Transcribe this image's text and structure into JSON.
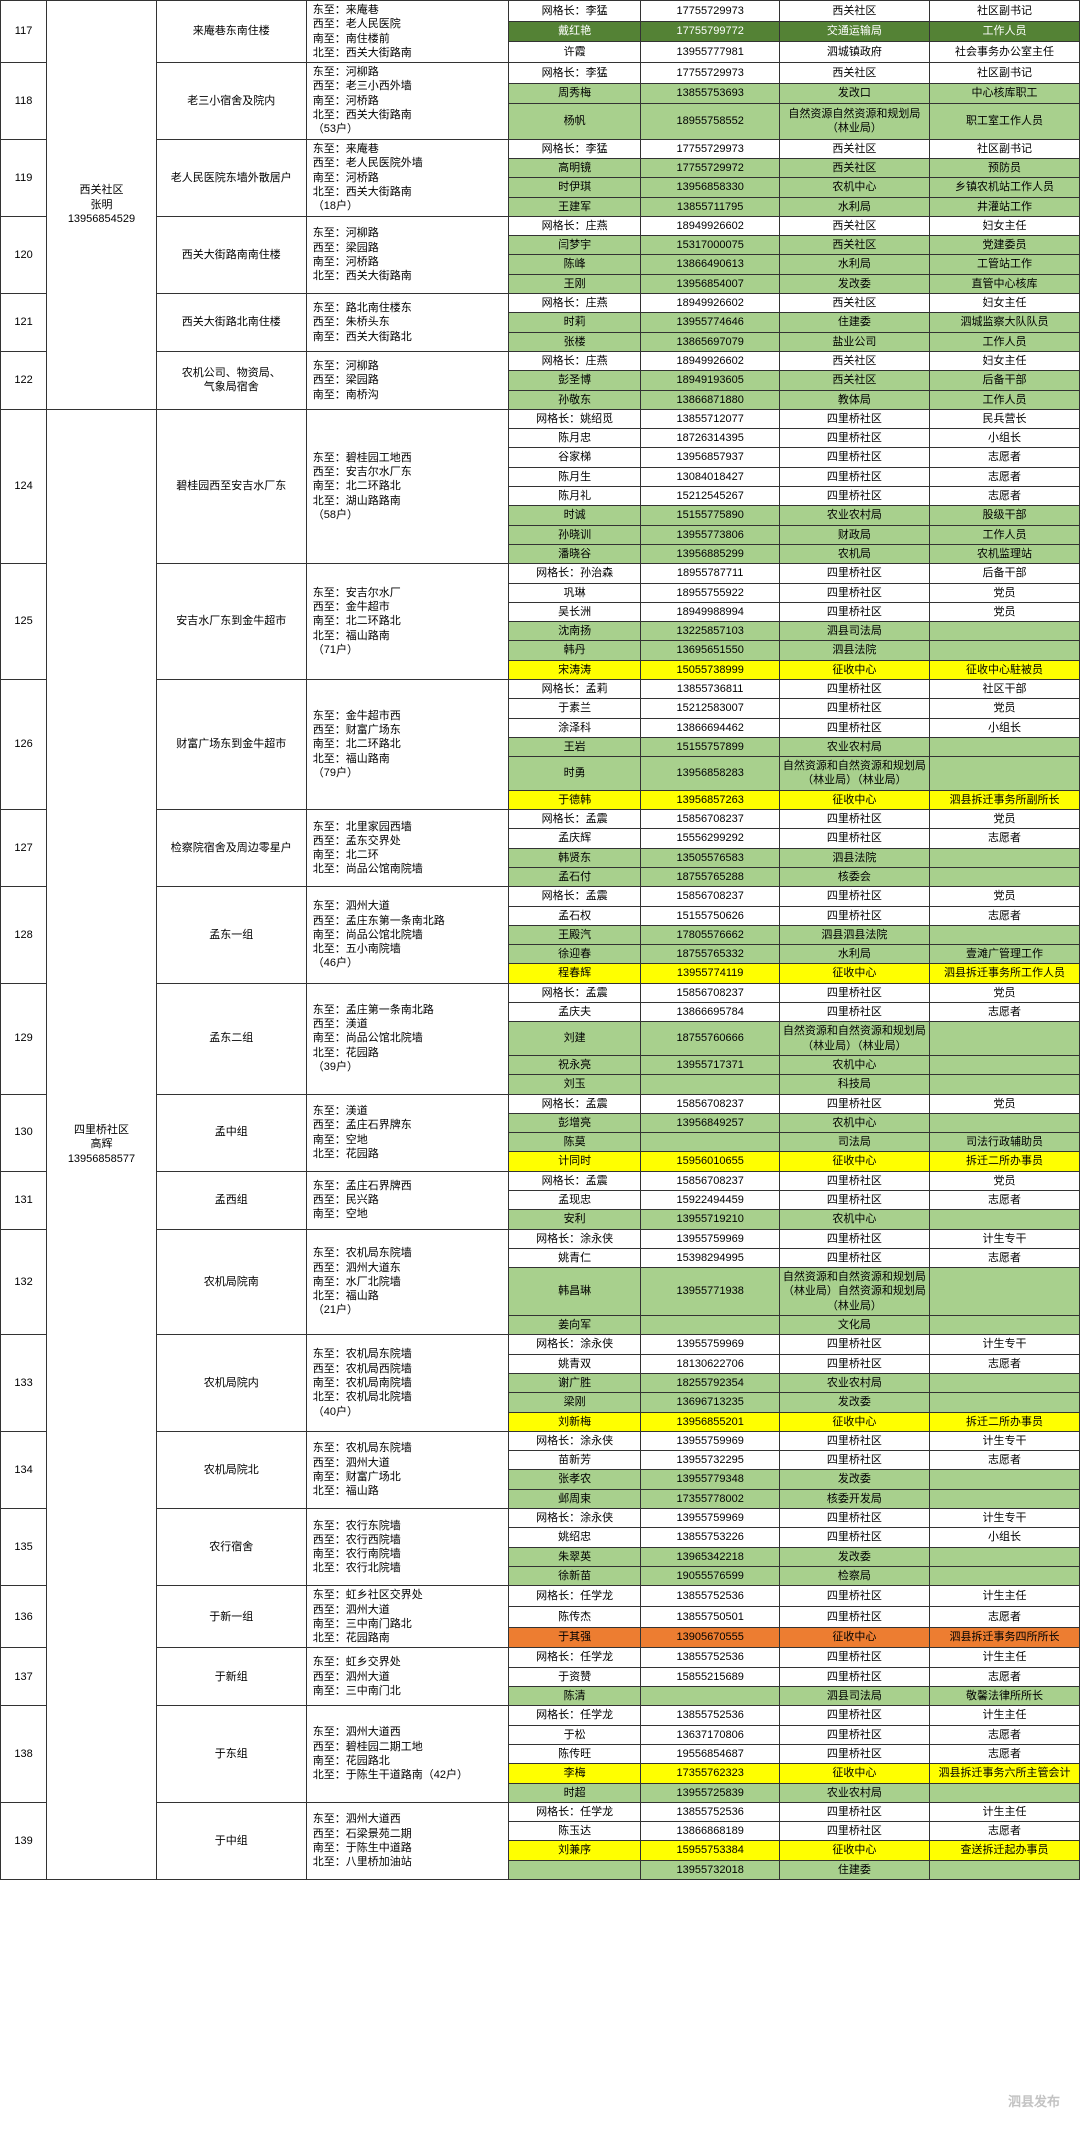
{
  "colors": {
    "light_green": "#a8d08d",
    "dark_green": "#548235",
    "yellow": "#ffff00",
    "orange": "#ed7d31",
    "border": "#333333"
  },
  "font": {
    "family": "Microsoft YaHei",
    "size": 11
  },
  "watermark": "泗县发布",
  "community1": {
    "label": "西关社区\n张明\n13956854529"
  },
  "community2": {
    "label": "四里桥社区\n高辉\n13956858577"
  },
  "rows": [
    {
      "id": "117",
      "area": "来庵巷东南住楼",
      "bound": "东至：来庵巷\n西至：老人民医院\n南至：南住楼前\n北至：西关大街路南",
      "sub": [
        {
          "n": "网格长：李猛",
          "p": "17755729973",
          "u": "西关社区",
          "r": "社区副书记",
          "cls": ""
        },
        {
          "n": "戴红艳",
          "p": "17755799772",
          "u": "交通运输局",
          "r": "工作人员",
          "cls": "dg"
        },
        {
          "n": "许霞",
          "p": "13955777981",
          "u": "泗城镇政府",
          "r": "社会事务办公室主任",
          "cls": ""
        }
      ]
    },
    {
      "id": "118",
      "area": "老三小宿舍及院内",
      "bound": "东至：河柳路\n西至：老三小西外墙\n南至：河桥路\n北至：西关大街路南\n（53户）",
      "sub": [
        {
          "n": "网格长：李猛",
          "p": "17755729973",
          "u": "西关社区",
          "r": "社区副书记",
          "cls": ""
        },
        {
          "n": "周秀梅",
          "p": "13855753693",
          "u": "发改口",
          "r": "中心核库职工",
          "cls": "g"
        },
        {
          "n": "杨帆",
          "p": "18955758552",
          "u": "自然资源自然资源和规划局（林业局）",
          "r": "职工室工作人员",
          "cls": "g"
        }
      ]
    },
    {
      "id": "119",
      "area": "老人民医院东墙外散居户",
      "bound": "东至：来庵巷\n西至：老人民医院外墙\n南至：河桥路\n北至：西关大街路南\n（18户）",
      "sub": [
        {
          "n": "网格长：李猛",
          "p": "17755729973",
          "u": "西关社区",
          "r": "社区副书记",
          "cls": ""
        },
        {
          "n": "高明镜",
          "p": "17755729972",
          "u": "西关社区",
          "r": "预防员",
          "cls": "g"
        },
        {
          "n": "时伊琪",
          "p": "13956858330",
          "u": "农机中心",
          "r": "乡镇农机站工作人员",
          "cls": "g"
        },
        {
          "n": "王建军",
          "p": "13855711795",
          "u": "水利局",
          "r": "井灌站工作",
          "cls": "g"
        }
      ]
    },
    {
      "id": "120",
      "area": "西关大街路南南住楼",
      "bound": "东至：河柳路\n西至：梁园路\n南至：河桥路\n北至：西关大街路南",
      "sub": [
        {
          "n": "网格长：庄燕",
          "p": "18949926602",
          "u": "西关社区",
          "r": "妇女主任",
          "cls": ""
        },
        {
          "n": "闫梦宇",
          "p": "15317000075",
          "u": "西关社区",
          "r": "党建委员",
          "cls": "g"
        },
        {
          "n": "陈峰",
          "p": "13866490613",
          "u": "水利局",
          "r": "工管站工作",
          "cls": "g"
        },
        {
          "n": "王刚",
          "p": "13956854007",
          "u": "发改委",
          "r": "直管中心核库",
          "cls": "g"
        }
      ]
    },
    {
      "id": "121",
      "area": "西关大街路北南住楼",
      "bound": "东至：路北南住楼东\n西至：朱桥头东\n南至：西关大街路北",
      "sub": [
        {
          "n": "网格长：庄燕",
          "p": "18949926602",
          "u": "西关社区",
          "r": "妇女主任",
          "cls": ""
        },
        {
          "n": "时莉",
          "p": "13955774646",
          "u": "住建委",
          "r": "泗城监察大队队员",
          "cls": "g"
        },
        {
          "n": "张楼",
          "p": "13865697079",
          "u": "盐业公司",
          "r": "工作人员",
          "cls": "g"
        }
      ]
    },
    {
      "id": "122",
      "area": "农机公司、物资局、\n气象局宿舍",
      "bound": "东至：河柳路\n西至：梁园路\n南至：南桥沟",
      "sub": [
        {
          "n": "网格长：庄燕",
          "p": "18949926602",
          "u": "西关社区",
          "r": "妇女主任",
          "cls": ""
        },
        {
          "n": "彭圣博",
          "p": "18949193605",
          "u": "西关社区",
          "r": "后备干部",
          "cls": "g"
        },
        {
          "n": "孙敬东",
          "p": "13866871880",
          "u": "教体局",
          "r": "工作人员",
          "cls": "g"
        }
      ]
    },
    {
      "id": "124",
      "area": "碧桂园西至安吉水厂东",
      "bound": "东至：碧桂园工地西\n西至：安吉尔水厂东\n南至：北二环路北\n北至：湖山路路南\n（58户）",
      "sub": [
        {
          "n": "网格长：姚绍觅",
          "p": "13855712077",
          "u": "四里桥社区",
          "r": "民兵营长",
          "cls": ""
        },
        {
          "n": "陈月忠",
          "p": "18726314395",
          "u": "四里桥社区",
          "r": "小组长",
          "cls": ""
        },
        {
          "n": "谷家梯",
          "p": "13956857937",
          "u": "四里桥社区",
          "r": "志愿者",
          "cls": ""
        },
        {
          "n": "陈月生",
          "p": "13084018427",
          "u": "四里桥社区",
          "r": "志愿者",
          "cls": ""
        },
        {
          "n": "陈月礼",
          "p": "15212545267",
          "u": "四里桥社区",
          "r": "志愿者",
          "cls": ""
        },
        {
          "n": "时诚",
          "p": "15155775890",
          "u": "农业农村局",
          "r": "股级干部",
          "cls": "g"
        },
        {
          "n": "孙晓训",
          "p": "13955773806",
          "u": "财政局",
          "r": "工作人员",
          "cls": "g"
        },
        {
          "n": "潘晓谷",
          "p": "13956885299",
          "u": "农机局",
          "r": "农机监理站",
          "cls": "g"
        }
      ]
    },
    {
      "id": "125",
      "area": "安吉水厂东到金牛超市",
      "bound": "东至：安吉尔水厂\n西至：金牛超市\n南至：北二环路北\n北至：福山路南\n（71户）",
      "sub": [
        {
          "n": "网格长：孙治森",
          "p": "18955787711",
          "u": "四里桥社区",
          "r": "后备干部",
          "cls": ""
        },
        {
          "n": "巩琳",
          "p": "18955755922",
          "u": "四里桥社区",
          "r": "党员",
          "cls": ""
        },
        {
          "n": "吴长洲",
          "p": "18949988994",
          "u": "四里桥社区",
          "r": "党员",
          "cls": ""
        },
        {
          "n": "沈南扬",
          "p": "13225857103",
          "u": "泗县司法局",
          "r": "",
          "cls": "g"
        },
        {
          "n": "韩丹",
          "p": "13695651550",
          "u": "泗县法院",
          "r": "",
          "cls": "g"
        },
        {
          "n": "宋涛涛",
          "p": "15055738999",
          "u": "征收中心",
          "r": "征收中心駐被员",
          "cls": "y"
        }
      ]
    },
    {
      "id": "126",
      "area": "财富广场东到金牛超市",
      "bound": "东至：金牛超市西\n西至：财富广场东\n南至：北二环路北\n北至：福山路南\n（79户）",
      "sub": [
        {
          "n": "网格长：孟莉",
          "p": "13855736811",
          "u": "四里桥社区",
          "r": "社区干部",
          "cls": ""
        },
        {
          "n": "于素兰",
          "p": "15212583007",
          "u": "四里桥社区",
          "r": "党员",
          "cls": ""
        },
        {
          "n": "涂泽科",
          "p": "13866694462",
          "u": "四里桥社区",
          "r": "小组长",
          "cls": ""
        },
        {
          "n": "王岩",
          "p": "15155757899",
          "u": "农业农村局",
          "r": "",
          "cls": "g"
        },
        {
          "n": "时勇",
          "p": "13956858283",
          "u": "自然资源和自然资源和规划局（林业局）（林业局）",
          "r": "",
          "cls": "g"
        },
        {
          "n": "于德韩",
          "p": "13956857263",
          "u": "征收中心",
          "r": "泗县拆迁事务所副所长",
          "cls": "y"
        }
      ]
    },
    {
      "id": "127",
      "area": "检察院宿舍及周边零星户",
      "bound": "东至：北里家园西墙\n西至：孟东交界处\n南至：北二环\n北至：尚品公馆南院墙",
      "sub": [
        {
          "n": "网格长：孟震",
          "p": "15856708237",
          "u": "四里桥社区",
          "r": "党员",
          "cls": ""
        },
        {
          "n": "孟庆辉",
          "p": "15556299292",
          "u": "四里桥社区",
          "r": "志愿者",
          "cls": ""
        },
        {
          "n": "韩贤东",
          "p": "13505576583",
          "u": "泗县法院",
          "r": "",
          "cls": "g"
        },
        {
          "n": "孟石付",
          "p": "18755765288",
          "u": "核委会",
          "r": "",
          "cls": "g"
        }
      ]
    },
    {
      "id": "128",
      "area": "孟东一组",
      "bound": "东至：泗州大道\n西至：孟庄东第一条南北路\n南至：尚品公馆北院墙\n北至：五小南院墙\n（46户）",
      "sub": [
        {
          "n": "网格长：孟震",
          "p": "15856708237",
          "u": "四里桥社区",
          "r": "党员",
          "cls": ""
        },
        {
          "n": "孟石权",
          "p": "15155750626",
          "u": "四里桥社区",
          "r": "志愿者",
          "cls": ""
        },
        {
          "n": "王殿汽",
          "p": "17805576662",
          "u": "泗县泗县法院",
          "r": "",
          "cls": "g"
        },
        {
          "n": "徐迎春",
          "p": "18755765332",
          "u": "水利局",
          "r": "壹滩广管理工作",
          "cls": "g"
        },
        {
          "n": "程春辉",
          "p": "13955774119",
          "u": "征收中心",
          "r": "泗县拆迁事务所工作人员",
          "cls": "y"
        }
      ]
    },
    {
      "id": "129",
      "area": "孟东二组",
      "bound": "东至：孟庄第一条南北路\n西至：渼道\n南至：尚品公馆北院墙\n北至：花园路\n（39户）",
      "sub": [
        {
          "n": "网格长：孟震",
          "p": "15856708237",
          "u": "四里桥社区",
          "r": "党员",
          "cls": ""
        },
        {
          "n": "孟庆夫",
          "p": "13866695784",
          "u": "四里桥社区",
          "r": "志愿者",
          "cls": ""
        },
        {
          "n": "刘建",
          "p": "18755760666",
          "u": "自然资源和自然资源和规划局（林业局）（林业局）",
          "r": "",
          "cls": "g"
        },
        {
          "n": "祝永亮",
          "p": "13955717371",
          "u": "农机中心",
          "r": "",
          "cls": "g"
        },
        {
          "n": "刘玉",
          "p": "",
          "u": "科技局",
          "r": "",
          "cls": "g"
        }
      ]
    },
    {
      "id": "130",
      "area": "孟中组",
      "bound": "东至：渼道\n西至：孟庄石界牌东\n南至：空地\n北至：花园路",
      "sub": [
        {
          "n": "网格长：孟震",
          "p": "15856708237",
          "u": "四里桥社区",
          "r": "党员",
          "cls": ""
        },
        {
          "n": "彭增亮",
          "p": "13956849257",
          "u": "农机中心",
          "r": "",
          "cls": "g"
        },
        {
          "n": "陈莫",
          "p": "",
          "u": "司法局",
          "r": "司法行政辅助员",
          "cls": "g"
        },
        {
          "n": "计同时",
          "p": "15956010655",
          "u": "征收中心",
          "r": "拆迁二所办事员",
          "cls": "y"
        }
      ]
    },
    {
      "id": "131",
      "area": "孟西组",
      "bound": "东至：孟庄石界牌西\n西至：民兴路\n南至：空地",
      "sub": [
        {
          "n": "网格长：孟震",
          "p": "15856708237",
          "u": "四里桥社区",
          "r": "党员",
          "cls": ""
        },
        {
          "n": "孟现忠",
          "p": "15922494459",
          "u": "四里桥社区",
          "r": "志愿者",
          "cls": ""
        },
        {
          "n": "安利",
          "p": "13955719210",
          "u": "农机中心",
          "r": "",
          "cls": "g"
        }
      ]
    },
    {
      "id": "132",
      "area": "农机局院南",
      "bound": "东至：农机局东院墙\n西至：泗州大道东\n南至：水厂北院墙\n北至：福山路\n（21户）",
      "sub": [
        {
          "n": "网格长：涂永侠",
          "p": "13955759969",
          "u": "四里桥社区",
          "r": "计生专干",
          "cls": ""
        },
        {
          "n": "姚青仁",
          "p": "15398294995",
          "u": "四里桥社区",
          "r": "志愿者",
          "cls": ""
        },
        {
          "n": "韩昌琳",
          "p": "13955771938",
          "u": "自然资源和自然资源和规划局（林业局）自然资源和规划局（林业局）",
          "r": "",
          "cls": "g"
        },
        {
          "n": "姜向军",
          "p": "",
          "u": "文化局",
          "r": "",
          "cls": "g"
        }
      ]
    },
    {
      "id": "133",
      "area": "农机局院内",
      "bound": "东至：农机局东院墙\n西至：农机局西院墙\n南至：农机局南院墙\n北至：农机局北院墙\n（40户）",
      "sub": [
        {
          "n": "网格长：涂永侠",
          "p": "13955759969",
          "u": "四里桥社区",
          "r": "计生专干",
          "cls": ""
        },
        {
          "n": "姚青双",
          "p": "18130622706",
          "u": "四里桥社区",
          "r": "志愿者",
          "cls": ""
        },
        {
          "n": "谢广胜",
          "p": "18255792354",
          "u": "农业农村局",
          "r": "",
          "cls": "g"
        },
        {
          "n": "梁刚",
          "p": "13696713235",
          "u": "发改委",
          "r": "",
          "cls": "g"
        },
        {
          "n": "刘新梅",
          "p": "13956855201",
          "u": "征收中心",
          "r": "拆迁二所办事员",
          "cls": "y"
        }
      ]
    },
    {
      "id": "134",
      "area": "农机局院北",
      "bound": "东至：农机局东院墙\n西至：泗州大道\n南至：财富广场北\n北至：福山路",
      "sub": [
        {
          "n": "网格长：涂永侠",
          "p": "13955759969",
          "u": "四里桥社区",
          "r": "计生专干",
          "cls": ""
        },
        {
          "n": "苗新芳",
          "p": "13955732295",
          "u": "四里桥社区",
          "r": "志愿者",
          "cls": ""
        },
        {
          "n": "张孝农",
          "p": "13955779348",
          "u": "发改委",
          "r": "",
          "cls": "g"
        },
        {
          "n": "邺周束",
          "p": "17355778002",
          "u": "核委开发局",
          "r": "",
          "cls": "g"
        }
      ]
    },
    {
      "id": "135",
      "area": "农行宿舍",
      "bound": "东至：农行东院墙\n西至：农行西院墙\n南至：农行南院墙\n北至：农行北院墙",
      "sub": [
        {
          "n": "网格长：涂永侠",
          "p": "13955759969",
          "u": "四里桥社区",
          "r": "计生专干",
          "cls": ""
        },
        {
          "n": "姚绍忠",
          "p": "13855753226",
          "u": "四里桥社区",
          "r": "小组长",
          "cls": ""
        },
        {
          "n": "朱翠英",
          "p": "13965342218",
          "u": "发改委",
          "r": "",
          "cls": "g"
        },
        {
          "n": "徐新苗",
          "p": "19055576599",
          "u": "检察局",
          "r": "",
          "cls": "g"
        }
      ]
    },
    {
      "id": "136",
      "area": "于新一组",
      "bound": "东至：虹乡社区交界处\n西至：泗州大道\n南至：三中南门路北\n北至：花园路南",
      "sub": [
        {
          "n": "网格长：任学龙",
          "p": "13855752536",
          "u": "四里桥社区",
          "r": "计生主任",
          "cls": ""
        },
        {
          "n": "陈传杰",
          "p": "13855750501",
          "u": "四里桥社区",
          "r": "志愿者",
          "cls": ""
        },
        {
          "n": "于其强",
          "p": "13905670555",
          "u": "征收中心",
          "r": "泗县拆迁事务四所所长",
          "cls": "o"
        }
      ]
    },
    {
      "id": "137",
      "area": "于新组",
      "bound": "东至：虹乡交界处\n西至：泗州大道\n南至：三中南门北",
      "sub": [
        {
          "n": "网格长：任学龙",
          "p": "13855752536",
          "u": "四里桥社区",
          "r": "计生主任",
          "cls": ""
        },
        {
          "n": "于资赞",
          "p": "15855215689",
          "u": "四里桥社区",
          "r": "志愿者",
          "cls": ""
        },
        {
          "n": "陈清",
          "p": "",
          "u": "泗县司法局",
          "r": "敬馨法律所所长",
          "cls": "g"
        }
      ]
    },
    {
      "id": "138",
      "area": "于东组",
      "bound": "东至：泗州大道西\n西至：碧桂园二期工地\n南至：花园路北\n北至：于陈生干道路南（42户）",
      "sub": [
        {
          "n": "网格长：任学龙",
          "p": "13855752536",
          "u": "四里桥社区",
          "r": "计生主任",
          "cls": ""
        },
        {
          "n": "于松",
          "p": "13637170806",
          "u": "四里桥社区",
          "r": "志愿者",
          "cls": ""
        },
        {
          "n": "陈传旺",
          "p": "19556854687",
          "u": "四里桥社区",
          "r": "志愿者",
          "cls": ""
        },
        {
          "n": "李梅",
          "p": "17355762323",
          "u": "征收中心",
          "r": "泗县拆迁事务六所主管会计",
          "cls": "y"
        },
        {
          "n": "时超",
          "p": "13955725839",
          "u": "农业农村局",
          "r": "",
          "cls": "g"
        }
      ]
    },
    {
      "id": "139",
      "area": "于中组",
      "bound": "东至：泗州大道西\n西至：石梁景苑二期\n南至：于陈生中道路\n北至：八里桥加油站",
      "sub": [
        {
          "n": "网格长：任学龙",
          "p": "13855752536",
          "u": "四里桥社区",
          "r": "计生主任",
          "cls": ""
        },
        {
          "n": "陈玉达",
          "p": "13866868189",
          "u": "四里桥社区",
          "r": "志愿者",
          "cls": ""
        },
        {
          "n": "刘兼序",
          "p": "15955753384",
          "u": "征收中心",
          "r": "查送拆迁起办事员",
          "cls": "y"
        },
        {
          "n": "",
          "p": "13955732018",
          "u": "住建委",
          "r": "",
          "cls": "g"
        }
      ]
    }
  ]
}
